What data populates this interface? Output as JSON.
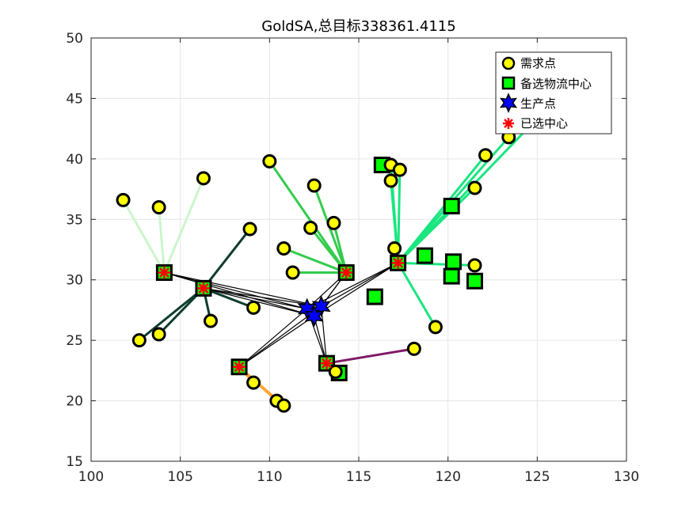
{
  "chart_data": {
    "type": "scatter",
    "title": "GoldSA,总目标338361.4115",
    "xlim": [
      100,
      130
    ],
    "ylim": [
      15,
      50
    ],
    "x_ticks": [
      100,
      105,
      110,
      115,
      120,
      125,
      130
    ],
    "y_ticks": [
      15,
      20,
      25,
      30,
      35,
      40,
      45,
      50
    ],
    "grid": true,
    "legend_placement": "top-right",
    "legend": [
      {
        "label": "需求点",
        "marker": "circle",
        "color": "#ffff00"
      },
      {
        "label": "备选物流中心",
        "marker": "square",
        "color": "#00ff00"
      },
      {
        "label": "生产点",
        "marker": "hexagram",
        "color": "#0000ff"
      },
      {
        "label": "已选中心",
        "marker": "asterisk",
        "color": "#ff0000"
      }
    ],
    "production_points": [
      {
        "x": 112.1,
        "y": 27.6
      },
      {
        "x": 112.9,
        "y": 27.8
      },
      {
        "x": 112.5,
        "y": 27.0
      }
    ],
    "candidate_centers": [
      {
        "x": 104.1,
        "y": 30.6
      },
      {
        "x": 106.3,
        "y": 29.3
      },
      {
        "x": 108.3,
        "y": 22.8
      },
      {
        "x": 113.2,
        "y": 23.1
      },
      {
        "x": 113.9,
        "y": 22.3
      },
      {
        "x": 114.3,
        "y": 30.6
      },
      {
        "x": 115.9,
        "y": 28.6
      },
      {
        "x": 117.2,
        "y": 31.4
      },
      {
        "x": 116.3,
        "y": 39.5
      },
      {
        "x": 118.7,
        "y": 32.0
      },
      {
        "x": 120.2,
        "y": 36.1
      },
      {
        "x": 120.3,
        "y": 31.5
      },
      {
        "x": 120.2,
        "y": 30.3
      },
      {
        "x": 121.5,
        "y": 29.9
      }
    ],
    "selected_centers": [
      {
        "x": 104.1,
        "y": 30.6,
        "color": "#ccf5cc"
      },
      {
        "x": 106.3,
        "y": 29.3,
        "color": "#0d3d2e"
      },
      {
        "x": 108.3,
        "y": 22.8,
        "color": "#ffa533"
      },
      {
        "x": 113.2,
        "y": 23.1,
        "color": "#801a66"
      },
      {
        "x": 114.3,
        "y": 30.6,
        "color": "#33cc4d"
      },
      {
        "x": 117.2,
        "y": 31.4,
        "color": "#1ae680"
      }
    ],
    "demand_points": [
      {
        "x": 101.8,
        "y": 36.6,
        "c": 0
      },
      {
        "x": 103.8,
        "y": 36.0,
        "c": 0
      },
      {
        "x": 106.3,
        "y": 38.4,
        "c": 0
      },
      {
        "x": 108.9,
        "y": 34.2,
        "c": 1
      },
      {
        "x": 109.1,
        "y": 27.7,
        "c": 1
      },
      {
        "x": 106.7,
        "y": 26.6,
        "c": 1
      },
      {
        "x": 103.8,
        "y": 25.5,
        "c": 1
      },
      {
        "x": 102.7,
        "y": 25.0,
        "c": 1
      },
      {
        "x": 109.1,
        "y": 21.5,
        "c": 2
      },
      {
        "x": 110.4,
        "y": 20.0,
        "c": 2
      },
      {
        "x": 110.8,
        "y": 19.6,
        "c": 2
      },
      {
        "x": 113.7,
        "y": 22.4,
        "c": 3
      },
      {
        "x": 118.1,
        "y": 24.3,
        "c": 3
      },
      {
        "x": 110.0,
        "y": 39.8,
        "c": 4
      },
      {
        "x": 112.5,
        "y": 37.8,
        "c": 4
      },
      {
        "x": 113.6,
        "y": 34.7,
        "c": 4
      },
      {
        "x": 112.3,
        "y": 34.3,
        "c": 4
      },
      {
        "x": 110.8,
        "y": 32.6,
        "c": 4
      },
      {
        "x": 111.3,
        "y": 30.6,
        "c": 4
      },
      {
        "x": 116.8,
        "y": 39.5,
        "c": 5
      },
      {
        "x": 117.3,
        "y": 39.1,
        "c": 5
      },
      {
        "x": 116.8,
        "y": 38.2,
        "c": 5
      },
      {
        "x": 117.0,
        "y": 32.6,
        "c": 5
      },
      {
        "x": 121.5,
        "y": 37.6,
        "c": 5
      },
      {
        "x": 122.1,
        "y": 40.3,
        "c": 5
      },
      {
        "x": 123.4,
        "y": 41.8,
        "c": 5
      },
      {
        "x": 126.6,
        "y": 45.8,
        "c": 5
      },
      {
        "x": 121.5,
        "y": 31.2,
        "c": 5
      },
      {
        "x": 119.3,
        "y": 26.1,
        "c": 5
      }
    ]
  }
}
